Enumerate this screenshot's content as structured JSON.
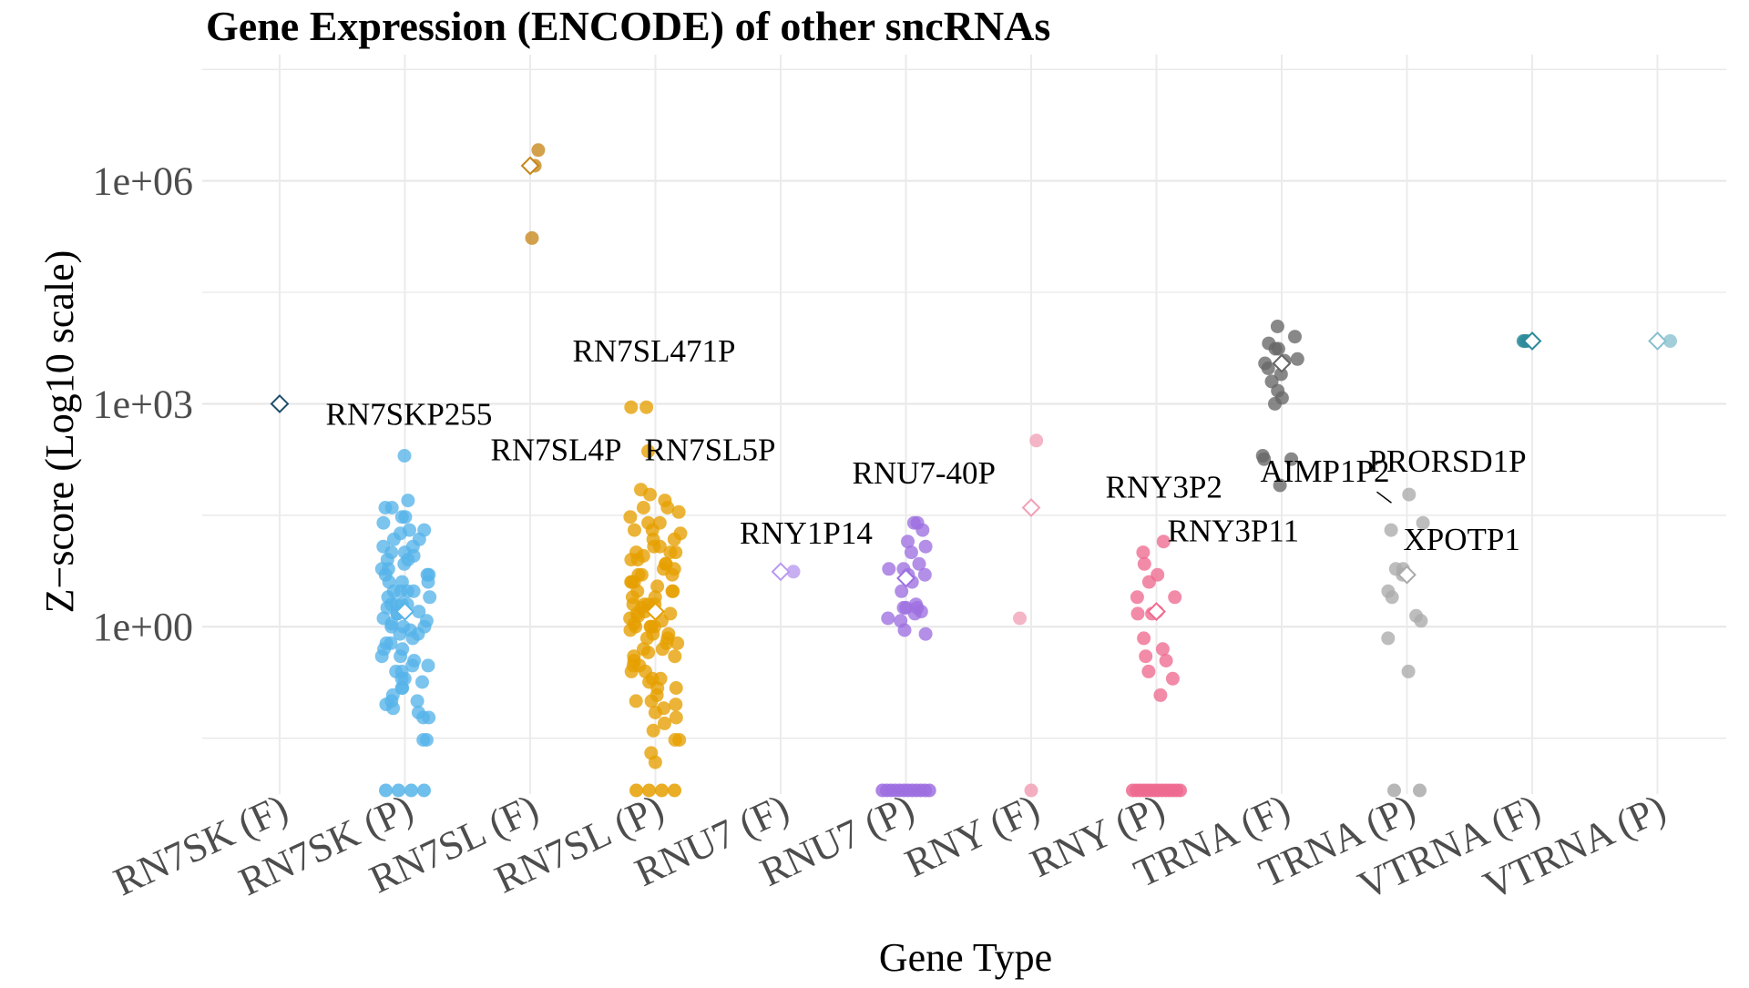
{
  "chart_data": {
    "type": "scatter",
    "title": "Gene Expression (ENCODE) of other sncRNAs",
    "xlabel": "Gene Type",
    "ylabel": "Z−score (Log10 scale)",
    "y_scale": "log10",
    "ylim": [
      0.0056,
      50000000
    ],
    "yticks": [
      {
        "value": 1,
        "label": "1e+00"
      },
      {
        "value": 1000,
        "label": "1e+03"
      },
      {
        "value": 1000000,
        "label": "1e+06"
      }
    ],
    "grid": true,
    "legend": "none",
    "categories": [
      "RN7SK (F)",
      "RN7SK (P)",
      "RN7SL (F)",
      "RN7SL (P)",
      "RNU7 (F)",
      "RNU7 (P)",
      "RNY (F)",
      "RNY (P)",
      "TRNA (F)",
      "TRNA (P)",
      "VTRNA (F)",
      "VTRNA (P)"
    ],
    "series": [
      {
        "category": "RN7SK (F)",
        "color": "#1f4e6b",
        "mean": 1000,
        "points": []
      },
      {
        "category": "RN7SK (P)",
        "color": "#56b4e9",
        "mean": 1.6,
        "points": [
          200,
          50,
          40,
          40,
          30,
          30,
          25,
          20,
          20,
          18,
          15,
          15,
          12,
          12,
          10,
          10,
          9,
          8,
          8,
          7,
          6,
          6,
          5,
          5,
          5,
          4,
          4,
          4,
          3,
          3,
          3,
          3,
          2.5,
          2.5,
          2,
          2,
          2,
          2,
          1.8,
          1.6,
          1.5,
          1.5,
          1.3,
          1.2,
          1.1,
          1,
          1,
          1,
          0.9,
          0.8,
          0.8,
          0.7,
          0.6,
          0.6,
          0.5,
          0.5,
          0.4,
          0.4,
          0.35,
          0.3,
          0.3,
          0.25,
          0.25,
          0.2,
          0.2,
          0.18,
          0.15,
          0.15,
          0.12,
          0.1,
          0.1,
          0.09,
          0.08,
          0.07,
          0.06,
          0.06,
          0.03,
          0.03
        ],
        "floor_count": 4
      },
      {
        "category": "RN7SL (F)",
        "color": "#c7861a",
        "mean": 1600000,
        "points": [
          2600000,
          1600000,
          170000
        ]
      },
      {
        "category": "RN7SL (P)",
        "color": "#e69f00",
        "mean": 1.6,
        "points": [
          900,
          900,
          230,
          70,
          60,
          50,
          40,
          40,
          35,
          30,
          25,
          25,
          20,
          20,
          18,
          15,
          15,
          12,
          12,
          10,
          10,
          10,
          9,
          8,
          8,
          7,
          7,
          6,
          6,
          5,
          5,
          5,
          4,
          4,
          4,
          3.5,
          3,
          3,
          3,
          2.5,
          2.5,
          2,
          2,
          2,
          2,
          1.8,
          1.6,
          1.5,
          1.5,
          1.4,
          1.3,
          1.2,
          1.1,
          1,
          1,
          1,
          1,
          0.9,
          0.8,
          0.8,
          0.7,
          0.7,
          0.6,
          0.6,
          0.5,
          0.5,
          0.45,
          0.4,
          0.4,
          0.35,
          0.3,
          0.3,
          0.25,
          0.25,
          0.2,
          0.2,
          0.18,
          0.15,
          0.15,
          0.12,
          0.1,
          0.1,
          0.09,
          0.08,
          0.07,
          0.06,
          0.05,
          0.04,
          0.03,
          0.03,
          0.02,
          0.015
        ],
        "floor_count": 4
      },
      {
        "category": "RNU7 (F)",
        "color": "#b999ee",
        "mean": 5.5,
        "points": [
          5.5
        ]
      },
      {
        "category": "RNU7 (P)",
        "color": "#9d6fe0",
        "mean": 4.5,
        "points": [
          25,
          25,
          20,
          14,
          12,
          10,
          7,
          6,
          6,
          5,
          5,
          4,
          3,
          2,
          1.8,
          1.8,
          1.8,
          1.6,
          1.5,
          1.3,
          1.2,
          0.9,
          0.8
        ],
        "floor_count": 12
      },
      {
        "category": "RNY (F)",
        "color": "#f1a1b6",
        "mean": 40,
        "points": [
          320,
          1.3
        ],
        "floor_count": 1
      },
      {
        "category": "RNY (P)",
        "color": "#ee6a8f",
        "mean": 1.6,
        "points": [
          14,
          10,
          7,
          5,
          4,
          2.5,
          2.5,
          1.6,
          1.5,
          1.5,
          0.7,
          0.5,
          0.4,
          0.35,
          0.25,
          0.2,
          0.12
        ],
        "floor_count": 14
      },
      {
        "category": "TRNA (F)",
        "color": "#666666",
        "mean": 3500,
        "points": [
          11000,
          8000,
          6500,
          5500,
          5500,
          4000,
          3800,
          3500,
          3000,
          2500,
          2000,
          1500,
          1200,
          1000,
          200,
          180,
          180,
          80
        ]
      },
      {
        "category": "TRNA (P)",
        "color": "#aaaaaa",
        "mean": 5,
        "points": [
          60,
          25,
          20,
          6,
          6,
          5,
          3,
          2.5,
          1.4,
          1.2,
          0.7,
          0.25
        ],
        "floor_count": 2
      },
      {
        "category": "VTRNA (F)",
        "color": "#2b8a9a",
        "mean": 7000,
        "points": [
          7000,
          7000,
          7000
        ]
      },
      {
        "category": "VTRNA (P)",
        "color": "#88c0cf",
        "mean": 7000,
        "points": [
          7000
        ]
      }
    ],
    "annotations": [
      {
        "label": "RN7SKP255",
        "category": "RN7SK (P)",
        "value": 200
      },
      {
        "label": "RN7SL471P",
        "category": "RN7SL (P)",
        "value": 900
      },
      {
        "label": "RN7SL4P",
        "category": "RN7SL (P)",
        "value": 230
      },
      {
        "label": "RN7SL5P",
        "category": "RN7SL (P)",
        "value": 230
      },
      {
        "label": "RNU7-40P",
        "category": "RNU7 (P)",
        "value": 25
      },
      {
        "label": "RNY1P14",
        "category": "RNU7 (F)",
        "value": 5.5
      },
      {
        "label": "RNY3P2",
        "category": "RNY (P)",
        "value": 14
      },
      {
        "label": "RNY3P11",
        "category": "RNY (P)",
        "value": 10
      },
      {
        "label": "AIMP1P2",
        "category": "TRNA (P)",
        "value": 25
      },
      {
        "label": "PRORSD1P",
        "category": "TRNA (P)",
        "value": 60
      },
      {
        "label": "XPOTP1",
        "category": "TRNA (P)",
        "value": 20
      }
    ]
  }
}
